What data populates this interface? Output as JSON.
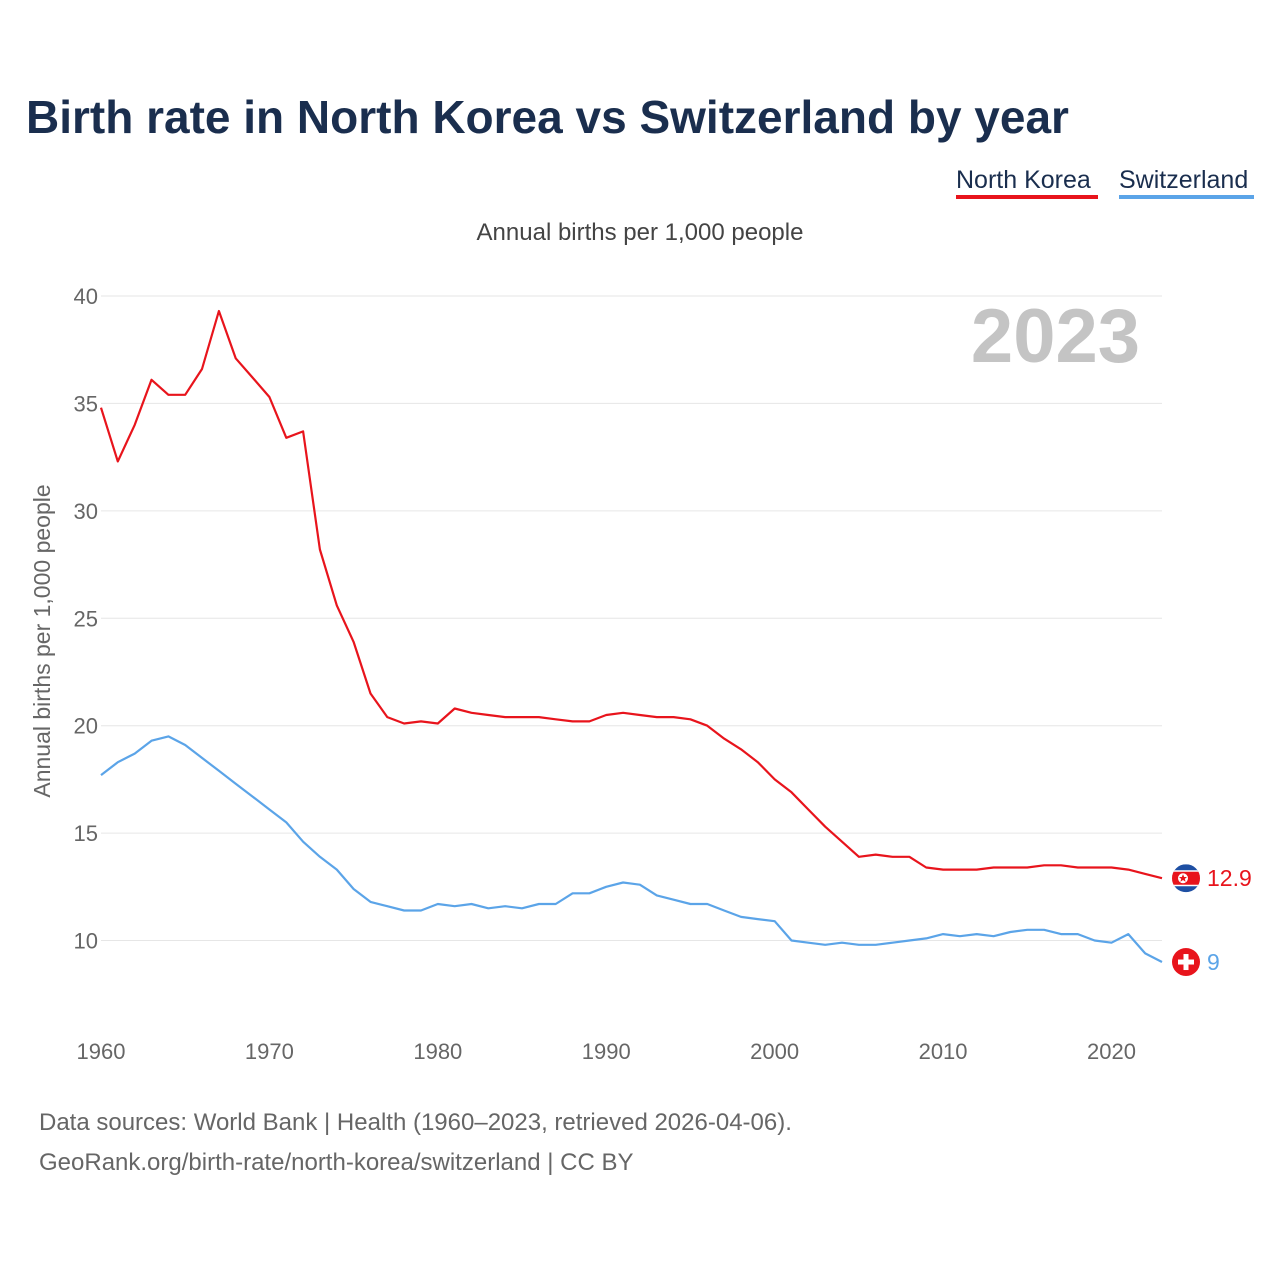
{
  "title": "Birth rate in North Korea vs Switzerland by year",
  "legend": [
    {
      "label": "North Korea",
      "color": "#e8141c"
    },
    {
      "label": "Switzerland",
      "color": "#5ba4e8"
    }
  ],
  "subtitle": "Annual births per 1,000 people",
  "year_display": "2023",
  "end_labels": {
    "north_korea": "12.9",
    "switzerland": "9"
  },
  "source_lines": [
    "Data sources: World Bank | Health (1960–2023, retrieved 2026-04-06).",
    "GeoRank.org/birth-rate/north-korea/switzerland | CC BY"
  ],
  "chart_data": {
    "type": "line",
    "title": "Birth rate in North Korea vs Switzerland by year",
    "xlabel": "",
    "ylabel": "Annual births per 1,000 people",
    "xlim": [
      1960,
      2023
    ],
    "ylim": [
      7,
      40
    ],
    "yticks": [
      10,
      15,
      20,
      25,
      30,
      35,
      40
    ],
    "xticks": [
      1960,
      1970,
      1980,
      1990,
      2000,
      2010,
      2020
    ],
    "grid": true,
    "legend_position": "top-right",
    "x": [
      1960,
      1961,
      1962,
      1963,
      1964,
      1965,
      1966,
      1967,
      1968,
      1969,
      1970,
      1971,
      1972,
      1973,
      1974,
      1975,
      1976,
      1977,
      1978,
      1979,
      1980,
      1981,
      1982,
      1983,
      1984,
      1985,
      1986,
      1987,
      1988,
      1989,
      1990,
      1991,
      1992,
      1993,
      1994,
      1995,
      1996,
      1997,
      1998,
      1999,
      2000,
      2001,
      2002,
      2003,
      2004,
      2005,
      2006,
      2007,
      2008,
      2009,
      2010,
      2011,
      2012,
      2013,
      2014,
      2015,
      2016,
      2017,
      2018,
      2019,
      2020,
      2021,
      2022,
      2023
    ],
    "series": [
      {
        "name": "North Korea",
        "color": "#e8141c",
        "values": [
          34.8,
          32.3,
          34.0,
          36.1,
          35.4,
          35.4,
          36.6,
          39.3,
          37.1,
          36.2,
          35.3,
          33.4,
          33.7,
          28.2,
          25.6,
          23.9,
          21.5,
          20.4,
          20.1,
          20.2,
          20.1,
          20.8,
          20.6,
          20.5,
          20.4,
          20.4,
          20.4,
          20.3,
          20.2,
          20.2,
          20.5,
          20.6,
          20.5,
          20.4,
          20.4,
          20.3,
          20.0,
          19.4,
          18.9,
          18.3,
          17.5,
          16.9,
          16.1,
          15.3,
          14.6,
          13.9,
          14.0,
          13.9,
          13.9,
          13.4,
          13.3,
          13.3,
          13.3,
          13.4,
          13.4,
          13.4,
          13.5,
          13.5,
          13.4,
          13.4,
          13.4,
          13.3,
          13.1,
          12.9
        ]
      },
      {
        "name": "Switzerland",
        "color": "#5ba4e8",
        "values": [
          17.7,
          18.3,
          18.7,
          19.3,
          19.5,
          19.1,
          18.5,
          17.9,
          17.3,
          16.7,
          16.1,
          15.5,
          14.6,
          13.9,
          13.3,
          12.4,
          11.8,
          11.6,
          11.4,
          11.4,
          11.7,
          11.6,
          11.7,
          11.5,
          11.6,
          11.5,
          11.7,
          11.7,
          12.2,
          12.2,
          12.5,
          12.7,
          12.6,
          12.1,
          11.9,
          11.7,
          11.7,
          11.4,
          11.1,
          11.0,
          10.9,
          10.0,
          9.9,
          9.8,
          9.9,
          9.8,
          9.8,
          9.9,
          10.0,
          10.1,
          10.3,
          10.2,
          10.3,
          10.2,
          10.4,
          10.5,
          10.5,
          10.3,
          10.3,
          10.0,
          9.9,
          10.3,
          9.4,
          9.0
        ]
      }
    ]
  }
}
